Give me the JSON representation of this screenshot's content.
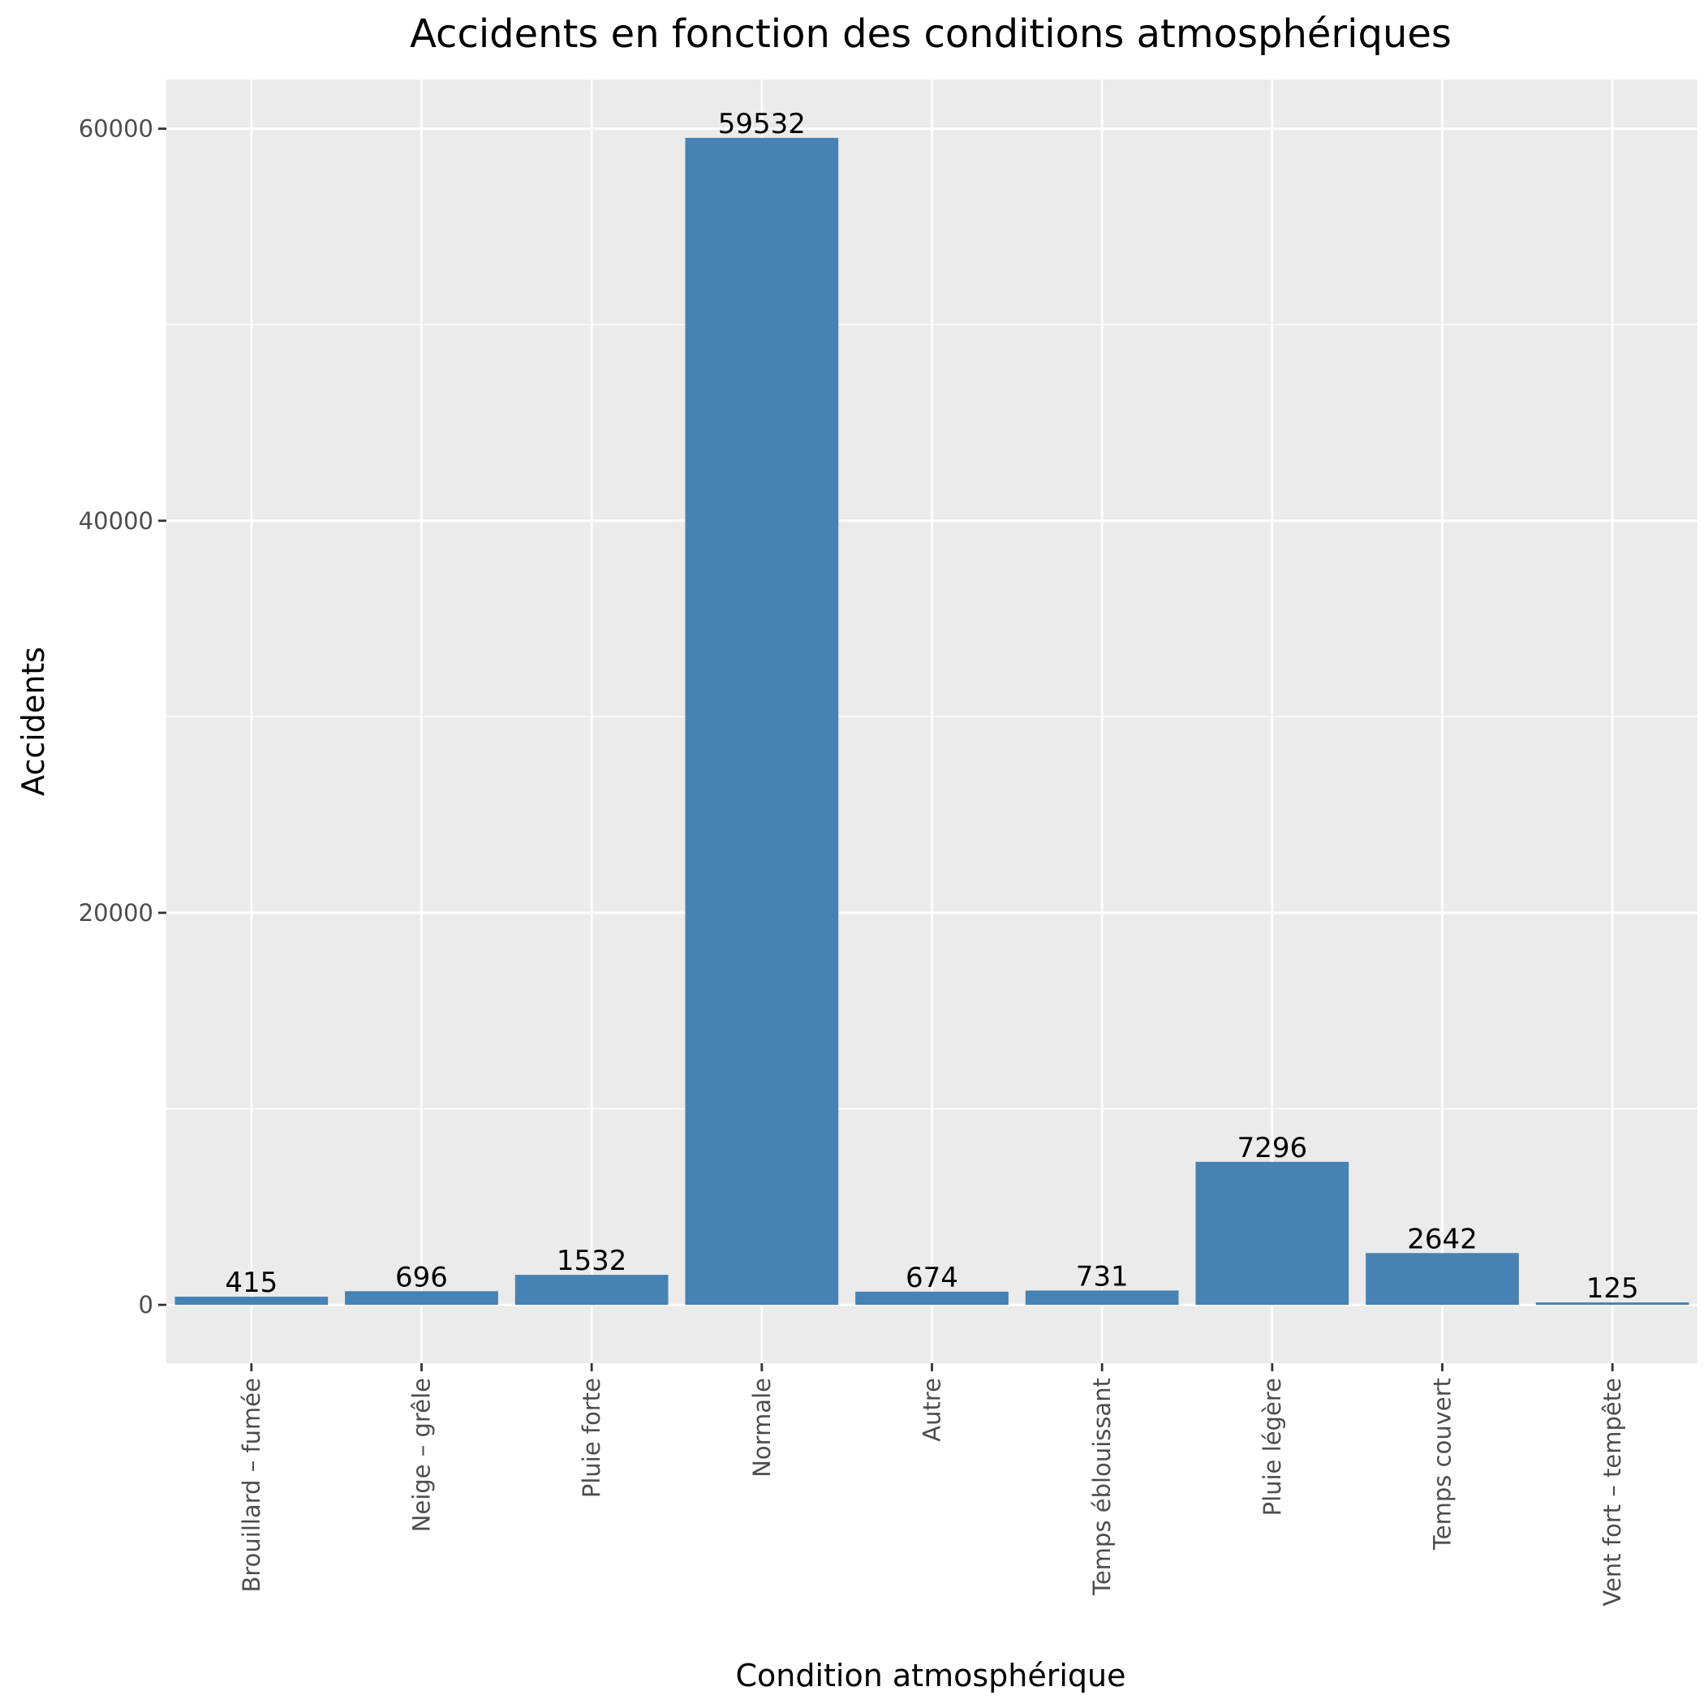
{
  "chart_data": {
    "type": "bar",
    "title": "Accidents en fonction des conditions atmosphériques",
    "xlabel": "Condition atmosphérique",
    "ylabel": "Accidents",
    "categories": [
      "Brouillard – fumée",
      "Neige – grêle",
      "Pluie forte",
      "Normale",
      "Autre",
      "Temps éblouissant",
      "Pluie légère",
      "Temps couvert",
      "Vent fort – tempête"
    ],
    "values": [
      415,
      696,
      1532,
      59532,
      674,
      731,
      7296,
      2642,
      125
    ],
    "data_labels": [
      "415",
      "696",
      "1532",
      "59532",
      "674",
      "731",
      "7296",
      "2642",
      "125"
    ],
    "ylim": [
      -2976.6,
      62508.6
    ],
    "y_ticks": [
      0,
      20000,
      40000,
      60000
    ],
    "y_tick_labels": [
      "0",
      "20000",
      "40000",
      "60000"
    ],
    "grid": true,
    "legend": "none",
    "colors": {
      "bar": "#4682B4",
      "panel_background": "#EBEBEB",
      "gridline": "#FFFFFF",
      "tick": "#333333",
      "tick_label": "#4D4D4D",
      "text": "#000000"
    }
  }
}
